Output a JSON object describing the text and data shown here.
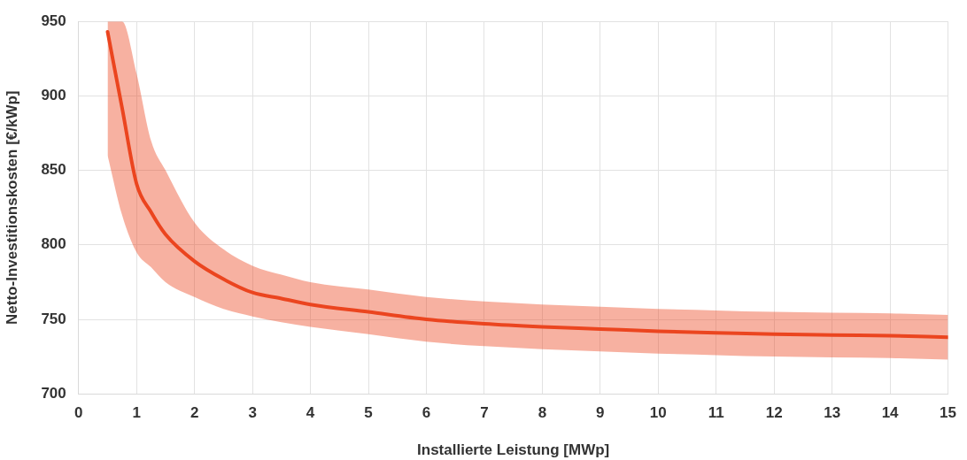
{
  "chart_data": {
    "type": "line",
    "xlabel": "Installierte Leistung [MWp]",
    "ylabel": "Netto-Investitionskosten [€/kWp]",
    "xlim": [
      0,
      15
    ],
    "xticks": [
      0,
      1,
      2,
      3,
      4,
      5,
      6,
      7,
      8,
      9,
      10,
      11,
      12,
      13,
      14,
      15
    ],
    "ylim": [
      700,
      950
    ],
    "yticks": [
      700,
      750,
      800,
      850,
      900,
      950
    ],
    "grid": true,
    "legend": false,
    "marker": "none",
    "line_style": "solid",
    "series": [
      {
        "color": "#eb4520",
        "x": [
          0.5,
          0.75,
          1,
          1.25,
          1.5,
          2,
          2.5,
          3,
          3.5,
          4,
          5,
          6,
          7,
          8,
          9,
          10,
          11,
          12,
          13,
          14,
          15
        ],
        "values": [
          943,
          892,
          841,
          822,
          807,
          789,
          777,
          768,
          764,
          760,
          755,
          750,
          747,
          745,
          743.5,
          742,
          741,
          740,
          739.5,
          739,
          738
        ],
        "lower": [
          860,
          820,
          795,
          785,
          775,
          765,
          757,
          752,
          748,
          745,
          740,
          735,
          732,
          730,
          728.5,
          727,
          726,
          725,
          724.5,
          724,
          723
        ],
        "upper": [
          950,
          950,
          915,
          870,
          850,
          815,
          797,
          786,
          780,
          775,
          770,
          765,
          762,
          760,
          758.5,
          757,
          756,
          755,
          754.5,
          754,
          753
        ]
      }
    ]
  }
}
